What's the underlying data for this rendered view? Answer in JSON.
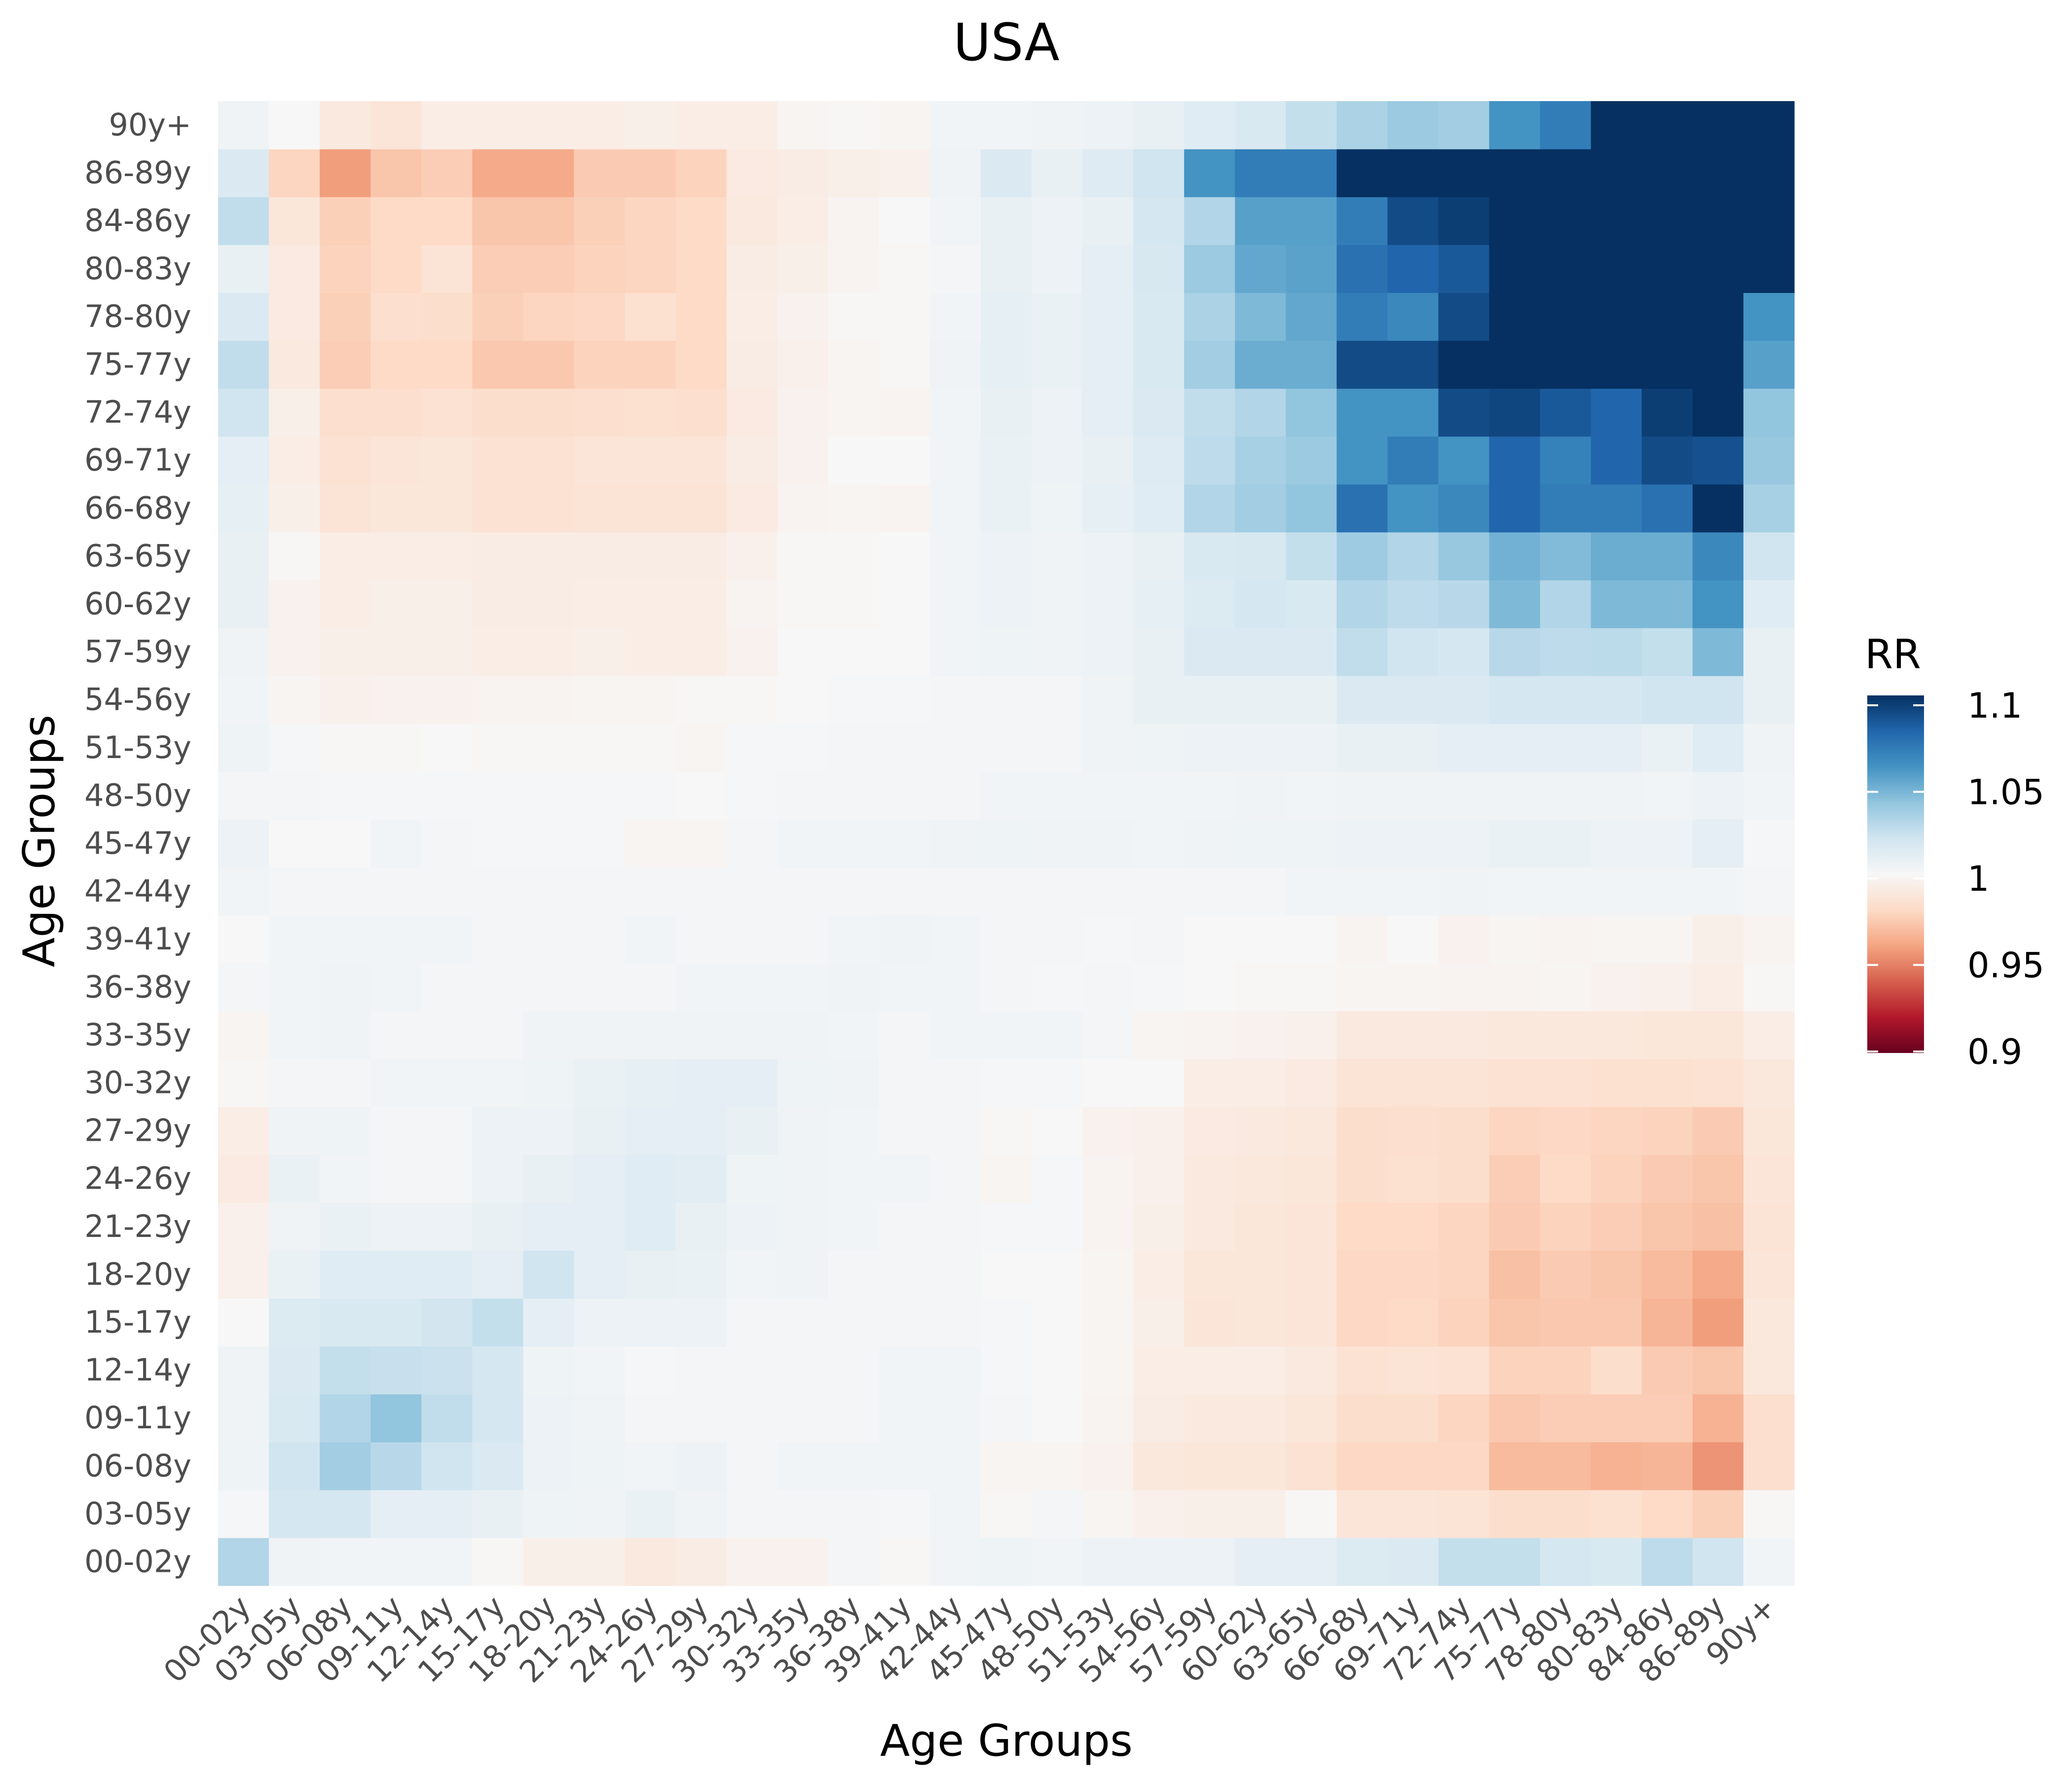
{
  "chart_data": {
    "type": "heatmap",
    "title": "USA",
    "xlabel": "Age Groups",
    "ylabel": "Age Groups",
    "categories_x": [
      "00-02y",
      "03-05y",
      "06-08y",
      "09-11y",
      "12-14y",
      "15-17y",
      "18-20y",
      "21-23y",
      "24-26y",
      "27-29y",
      "30-32y",
      "33-35y",
      "36-38y",
      "39-41y",
      "42-44y",
      "45-47y",
      "48-50y",
      "51-53y",
      "54-56y",
      "57-59y",
      "60-62y",
      "63-65y",
      "66-68y",
      "69-71y",
      "72-74y",
      "75-77y",
      "78-80y",
      "80-83y",
      "84-86y",
      "86-89y",
      "90y+"
    ],
    "categories_y": [
      "00-02y",
      "03-05y",
      "06-08y",
      "09-11y",
      "12-14y",
      "15-17y",
      "18-20y",
      "21-23y",
      "24-26y",
      "27-29y",
      "30-32y",
      "33-35y",
      "36-38y",
      "39-41y",
      "42-44y",
      "45-47y",
      "48-50y",
      "51-53y",
      "54-56y",
      "57-59y",
      "60-62y",
      "63-65y",
      "66-68y",
      "69-71y",
      "72-74y",
      "75-77y",
      "78-80y",
      "80-83y",
      "84-86y",
      "86-89y",
      "90y+"
    ],
    "values": [
      [
        1.03,
        1.004,
        1.003,
        1.003,
        1.003,
        0.999,
        0.994,
        0.994,
        0.99,
        0.992,
        0.996,
        0.996,
        1.002,
        0.999,
        1.003,
        1.005,
        1.003,
        1.006,
        1.006,
        1.006,
        1.01,
        1.01,
        1.014,
        1.015,
        1.024,
        1.024,
        1.018,
        1.016,
        1.026,
        1.02,
        1.003
      ],
      [
        1.001,
        1.018,
        1.018,
        1.01,
        1.01,
        1.008,
        1.005,
        1.004,
        1.007,
        1.004,
        1.002,
        1.002,
        1.002,
        1.001,
        1.003,
        0.999,
        1.002,
        0.998,
        0.995,
        0.994,
        0.994,
        0.999,
        0.987,
        0.987,
        0.986,
        0.982,
        0.982,
        0.984,
        0.98,
        0.976,
        0.999
      ],
      [
        1.005,
        1.02,
        1.035,
        1.028,
        1.02,
        1.015,
        1.006,
        1.005,
        1.003,
        1.006,
        1.002,
        1.003,
        1.003,
        1.003,
        1.003,
        0.998,
        0.998,
        0.996,
        0.989,
        0.988,
        0.988,
        0.985,
        0.979,
        0.979,
        0.979,
        0.968,
        0.968,
        0.965,
        0.966,
        0.955,
        0.983
      ],
      [
        1.004,
        1.016,
        1.03,
        1.04,
        1.025,
        1.018,
        1.006,
        1.004,
        1.002,
        1.002,
        1.002,
        1.002,
        1.002,
        1.003,
        1.003,
        1.002,
        1.0,
        0.997,
        0.992,
        0.99,
        0.99,
        0.988,
        0.982,
        0.982,
        0.978,
        0.973,
        0.975,
        0.975,
        0.975,
        0.965,
        0.983
      ],
      [
        1.004,
        1.015,
        1.024,
        1.023,
        1.022,
        1.018,
        1.005,
        1.003,
        1.001,
        1.002,
        1.002,
        1.002,
        1.002,
        1.003,
        1.003,
        1.001,
        1.0,
        0.998,
        0.993,
        0.993,
        0.993,
        0.99,
        0.985,
        0.986,
        0.985,
        0.977,
        0.977,
        0.982,
        0.974,
        0.972,
        0.989
      ],
      [
        1.0,
        1.014,
        1.016,
        1.016,
        1.019,
        1.024,
        1.01,
        1.006,
        1.006,
        1.006,
        1.002,
        1.002,
        1.002,
        1.002,
        1.002,
        1.001,
        1.0,
        0.998,
        0.994,
        0.987,
        0.988,
        0.987,
        0.979,
        0.98,
        0.977,
        0.972,
        0.973,
        0.973,
        0.966,
        0.958,
        0.989
      ],
      [
        0.995,
        1.007,
        1.012,
        1.012,
        1.012,
        1.01,
        1.02,
        1.01,
        1.008,
        1.007,
        1.003,
        1.004,
        1.002,
        1.002,
        1.002,
        1.0,
        1.0,
        0.998,
        0.993,
        0.988,
        0.988,
        0.987,
        0.979,
        0.979,
        0.978,
        0.97,
        0.974,
        0.972,
        0.968,
        0.962,
        0.987
      ],
      [
        0.995,
        1.004,
        1.007,
        1.006,
        1.006,
        1.008,
        1.01,
        1.01,
        1.012,
        1.008,
        1.006,
        1.004,
        1.003,
        1.002,
        1.002,
        1.001,
        1.001,
        0.997,
        0.994,
        0.99,
        0.988,
        0.987,
        0.98,
        0.98,
        0.978,
        0.974,
        0.977,
        0.975,
        0.972,
        0.97,
        0.986
      ],
      [
        0.991,
        1.007,
        1.003,
        1.002,
        1.002,
        1.006,
        1.008,
        1.01,
        1.012,
        1.011,
        1.005,
        1.004,
        1.003,
        1.003,
        1.002,
        0.998,
        1.001,
        0.997,
        0.995,
        0.99,
        0.989,
        0.988,
        0.982,
        0.984,
        0.982,
        0.975,
        0.98,
        0.977,
        0.974,
        0.972,
        0.987
      ],
      [
        0.993,
        1.004,
        1.005,
        1.002,
        1.002,
        1.006,
        1.006,
        1.008,
        1.01,
        1.01,
        1.008,
        1.004,
        1.003,
        1.002,
        1.002,
        0.999,
        1.0,
        0.996,
        0.995,
        0.991,
        0.99,
        0.989,
        0.982,
        0.983,
        0.982,
        0.978,
        0.979,
        0.978,
        0.977,
        0.974,
        0.988
      ],
      [
        0.999,
        1.002,
        1.002,
        1.003,
        1.003,
        1.003,
        1.005,
        1.007,
        1.009,
        1.01,
        1.01,
        1.005,
        1.004,
        1.002,
        1.002,
        1.001,
        1.001,
        1.0,
        1.0,
        0.993,
        0.993,
        0.991,
        0.986,
        0.986,
        0.986,
        0.985,
        0.985,
        0.984,
        0.984,
        0.985,
        0.989
      ],
      [
        0.998,
        1.003,
        1.004,
        1.002,
        1.002,
        1.002,
        1.004,
        1.004,
        1.004,
        1.004,
        1.004,
        1.004,
        1.003,
        1.002,
        1.003,
        1.003,
        1.003,
        1.002,
        0.998,
        0.997,
        0.996,
        0.995,
        0.99,
        0.99,
        0.99,
        0.989,
        0.989,
        0.989,
        0.988,
        0.988,
        0.993
      ],
      [
        1.002,
        1.003,
        1.004,
        1.003,
        1.002,
        1.002,
        1.002,
        1.002,
        1.002,
        1.003,
        1.003,
        1.003,
        1.004,
        1.003,
        1.003,
        1.002,
        1.001,
        1.002,
        1.001,
        1.0,
        0.999,
        0.999,
        0.998,
        0.998,
        0.997,
        0.997,
        0.998,
        0.996,
        0.995,
        0.993,
        0.999
      ],
      [
        1.0,
        1.003,
        1.003,
        1.003,
        1.003,
        1.002,
        1.002,
        1.002,
        1.003,
        1.002,
        1.002,
        1.002,
        1.003,
        1.004,
        1.003,
        1.002,
        1.002,
        1.001,
        1.002,
        1.0,
        1.0,
        1.0,
        0.997,
        1.0,
        0.996,
        0.998,
        0.997,
        0.998,
        0.998,
        0.994,
        0.997
      ],
      [
        1.003,
        1.002,
        1.002,
        1.002,
        1.002,
        1.002,
        1.002,
        1.002,
        1.002,
        1.002,
        1.002,
        1.002,
        1.002,
        1.002,
        1.002,
        1.002,
        1.002,
        1.002,
        1.002,
        1.002,
        1.002,
        1.003,
        1.003,
        1.003,
        1.004,
        1.003,
        1.003,
        1.003,
        1.003,
        1.003,
        1.002
      ],
      [
        1.006,
        1.0,
        1.0,
        1.003,
        1.002,
        1.001,
        1.001,
        1.001,
        0.998,
        0.998,
        1.002,
        1.003,
        1.003,
        1.003,
        1.004,
        1.005,
        1.004,
        1.004,
        1.003,
        1.004,
        1.005,
        1.005,
        1.006,
        1.006,
        1.006,
        1.007,
        1.007,
        1.006,
        1.006,
        1.01,
        1.001
      ],
      [
        1.002,
        1.002,
        1.001,
        1.001,
        1.001,
        1.001,
        1.001,
        1.001,
        1.001,
        1.0,
        1.001,
        1.002,
        1.002,
        1.002,
        1.002,
        1.003,
        1.003,
        1.003,
        1.003,
        1.003,
        1.004,
        1.003,
        1.004,
        1.004,
        1.004,
        1.004,
        1.004,
        1.004,
        1.003,
        1.006,
        1.003
      ],
      [
        1.005,
        1.001,
        0.999,
        0.999,
        1.0,
        0.999,
        0.999,
        0.999,
        0.999,
        0.998,
        1.001,
        1.001,
        1.002,
        1.002,
        1.002,
        1.002,
        1.002,
        1.004,
        1.005,
        1.006,
        1.006,
        1.006,
        1.008,
        1.008,
        1.01,
        1.01,
        1.01,
        1.01,
        1.007,
        1.012,
        1.004
      ],
      [
        1.003,
        0.998,
        0.995,
        0.996,
        0.996,
        0.997,
        0.997,
        0.998,
        0.998,
        0.999,
        0.999,
        1.0,
        1.001,
        1.001,
        1.002,
        1.002,
        1.002,
        1.004,
        1.008,
        1.008,
        1.008,
        1.008,
        1.015,
        1.015,
        1.015,
        1.018,
        1.018,
        1.018,
        1.02,
        1.02,
        1.008
      ],
      [
        1.004,
        0.996,
        0.994,
        0.994,
        0.994,
        0.993,
        0.993,
        0.994,
        0.993,
        0.993,
        0.996,
        1.0,
        1.0,
        1.0,
        1.003,
        1.005,
        1.004,
        1.006,
        1.008,
        1.015,
        1.015,
        1.015,
        1.025,
        1.02,
        1.018,
        1.028,
        1.026,
        1.027,
        1.024,
        1.045,
        1.008
      ],
      [
        1.008,
        0.996,
        0.993,
        0.994,
        0.994,
        0.992,
        0.992,
        0.993,
        0.993,
        0.993,
        0.997,
        0.999,
        0.999,
        1.0,
        1.003,
        1.006,
        1.004,
        1.006,
        1.009,
        1.014,
        1.018,
        1.016,
        1.03,
        1.026,
        1.028,
        1.045,
        1.03,
        1.045,
        1.045,
        1.06,
        1.012
      ],
      [
        1.008,
        0.999,
        0.993,
        0.993,
        0.993,
        0.992,
        0.992,
        0.992,
        0.992,
        0.992,
        0.995,
        0.999,
        0.999,
        1.0,
        1.003,
        1.006,
        1.004,
        1.006,
        1.008,
        1.016,
        1.017,
        1.024,
        1.036,
        1.03,
        1.038,
        1.048,
        1.044,
        1.05,
        1.05,
        1.065,
        1.02
      ],
      [
        1.009,
        0.994,
        0.986,
        0.988,
        0.988,
        0.985,
        0.985,
        0.986,
        0.986,
        0.986,
        0.991,
        0.997,
        0.998,
        0.997,
        1.003,
        1.007,
        1.005,
        1.009,
        1.012,
        1.03,
        1.035,
        1.04,
        1.075,
        1.06,
        1.065,
        1.08,
        1.07,
        1.07,
        1.075,
        1.1,
        1.033
      ],
      [
        1.01,
        0.993,
        0.985,
        0.987,
        0.988,
        0.985,
        0.985,
        0.987,
        0.987,
        0.987,
        0.992,
        0.996,
        1.0,
        1.0,
        1.003,
        1.007,
        1.006,
        1.008,
        1.013,
        1.026,
        1.033,
        1.037,
        1.06,
        1.07,
        1.06,
        1.08,
        1.068,
        1.08,
        1.09,
        1.088,
        1.038
      ],
      [
        1.02,
        0.994,
        0.983,
        0.983,
        0.985,
        0.982,
        0.982,
        0.983,
        0.984,
        0.983,
        0.991,
        0.996,
        0.998,
        0.997,
        1.003,
        1.008,
        1.006,
        1.01,
        1.015,
        1.025,
        1.03,
        1.04,
        1.06,
        1.06,
        1.09,
        1.092,
        1.085,
        1.08,
        1.095,
        1.1,
        1.04
      ],
      [
        1.025,
        0.99,
        0.975,
        0.98,
        0.98,
        0.973,
        0.973,
        0.977,
        0.977,
        0.98,
        0.992,
        0.995,
        0.998,
        0.999,
        1.004,
        1.009,
        1.007,
        1.01,
        1.016,
        1.035,
        1.05,
        1.05,
        1.09,
        1.09,
        1.1,
        1.1,
        1.1,
        1.1,
        1.1,
        1.1,
        1.055
      ],
      [
        1.015,
        0.991,
        0.976,
        0.983,
        0.982,
        0.976,
        0.978,
        0.979,
        0.984,
        0.98,
        0.993,
        0.996,
        0.999,
        0.999,
        1.003,
        1.009,
        1.007,
        1.01,
        1.016,
        1.032,
        1.045,
        1.052,
        1.07,
        1.065,
        1.09,
        1.1,
        1.1,
        1.1,
        1.1,
        1.1,
        1.06
      ],
      [
        1.008,
        0.991,
        0.977,
        0.98,
        0.986,
        0.975,
        0.975,
        0.977,
        0.978,
        0.98,
        0.992,
        0.994,
        0.997,
        0.999,
        1.002,
        1.008,
        1.006,
        1.01,
        1.017,
        1.037,
        1.052,
        1.054,
        1.075,
        1.08,
        1.085,
        1.1,
        1.1,
        1.1,
        1.1,
        1.1,
        1.1
      ],
      [
        1.025,
        0.988,
        0.976,
        0.98,
        0.98,
        0.972,
        0.972,
        0.976,
        0.978,
        0.98,
        0.99,
        0.993,
        0.997,
        1.0,
        1.003,
        1.008,
        1.006,
        1.008,
        1.018,
        1.03,
        1.055,
        1.055,
        1.07,
        1.09,
        1.095,
        1.1,
        1.1,
        1.1,
        1.1,
        1.1,
        1.1
      ],
      [
        1.015,
        0.978,
        0.958,
        0.972,
        0.975,
        0.962,
        0.962,
        0.974,
        0.974,
        0.977,
        0.991,
        0.992,
        0.994,
        0.995,
        1.004,
        1.015,
        1.008,
        1.013,
        1.02,
        1.06,
        1.07,
        1.07,
        1.1,
        1.1,
        1.1,
        1.1,
        1.1,
        1.1,
        1.1,
        1.1,
        1.1
      ],
      [
        1.004,
        1.0,
        0.99,
        0.987,
        0.993,
        0.993,
        0.993,
        0.993,
        0.994,
        0.993,
        0.993,
        0.998,
        0.999,
        0.998,
        1.003,
        1.003,
        1.004,
        1.006,
        1.008,
        1.012,
        1.016,
        1.024,
        1.032,
        1.037,
        1.035,
        1.06,
        1.07,
        1.1,
        1.1,
        1.1,
        1.1
      ]
    ],
    "color_scale": {
      "title": "RR",
      "min": 0.9,
      "max": 1.1,
      "ticks": [
        "1.1",
        "1.05",
        "1",
        "0.95",
        "0.9"
      ],
      "tick_values": [
        1.1,
        1.05,
        1.0,
        0.95,
        0.9
      ],
      "palette": "RdBu",
      "stops": [
        "#67001f",
        "#b2182b",
        "#d6604d",
        "#f4a582",
        "#fddbc7",
        "#f7f7f7",
        "#d1e5f0",
        "#92c5de",
        "#4393c3",
        "#2166ac",
        "#053061"
      ]
    },
    "legend_placement": "right",
    "grid": true
  }
}
